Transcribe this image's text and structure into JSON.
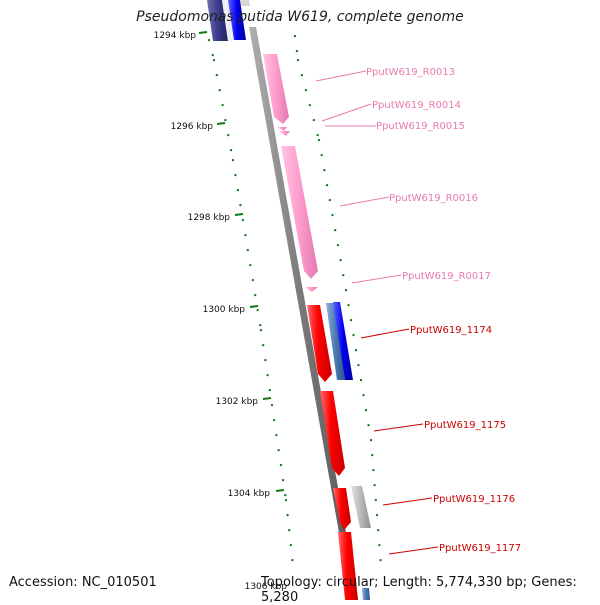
{
  "title": "Pseudomonas putida W619, complete genome",
  "footer": {
    "accession": "Accession: NC_010501",
    "topology": "Topology: circular; Length: 5,774,330 bp; Genes: 5,280"
  },
  "axis_labels": [
    "1294 kbp",
    "1296 kbp",
    "1298 kbp",
    "1300 kbp",
    "1302 kbp",
    "1304 kbp",
    "1306 kbp"
  ],
  "genes": [
    {
      "label": "PputW619_R0013",
      "color": "#e87ab0"
    },
    {
      "label": "PputW619_R0014",
      "color": "#e87ab0"
    },
    {
      "label": "PputW619_R0015",
      "color": "#e87ab0"
    },
    {
      "label": "PputW619_R0016",
      "color": "#e87ab0"
    },
    {
      "label": "PputW619_R0017",
      "color": "#e87ab0"
    },
    {
      "label": "PputW619_1174",
      "color": "#cc0000"
    },
    {
      "label": "PputW619_1175",
      "color": "#cc0000"
    },
    {
      "label": "PputW619_1176",
      "color": "#cc0000"
    },
    {
      "label": "PputW619_1177",
      "color": "#cc0000"
    }
  ],
  "colors": {
    "rrna_gene": "#ff9fcf",
    "cds_gene": "#ff0000",
    "backbone": "#777777",
    "gc_ticks": "#117711",
    "strand_blue": "#0000ee",
    "strand_steel": "#4a7ab5",
    "strand_gray": "#b8b8b8",
    "strand_navy": "#3b3b8c"
  }
}
